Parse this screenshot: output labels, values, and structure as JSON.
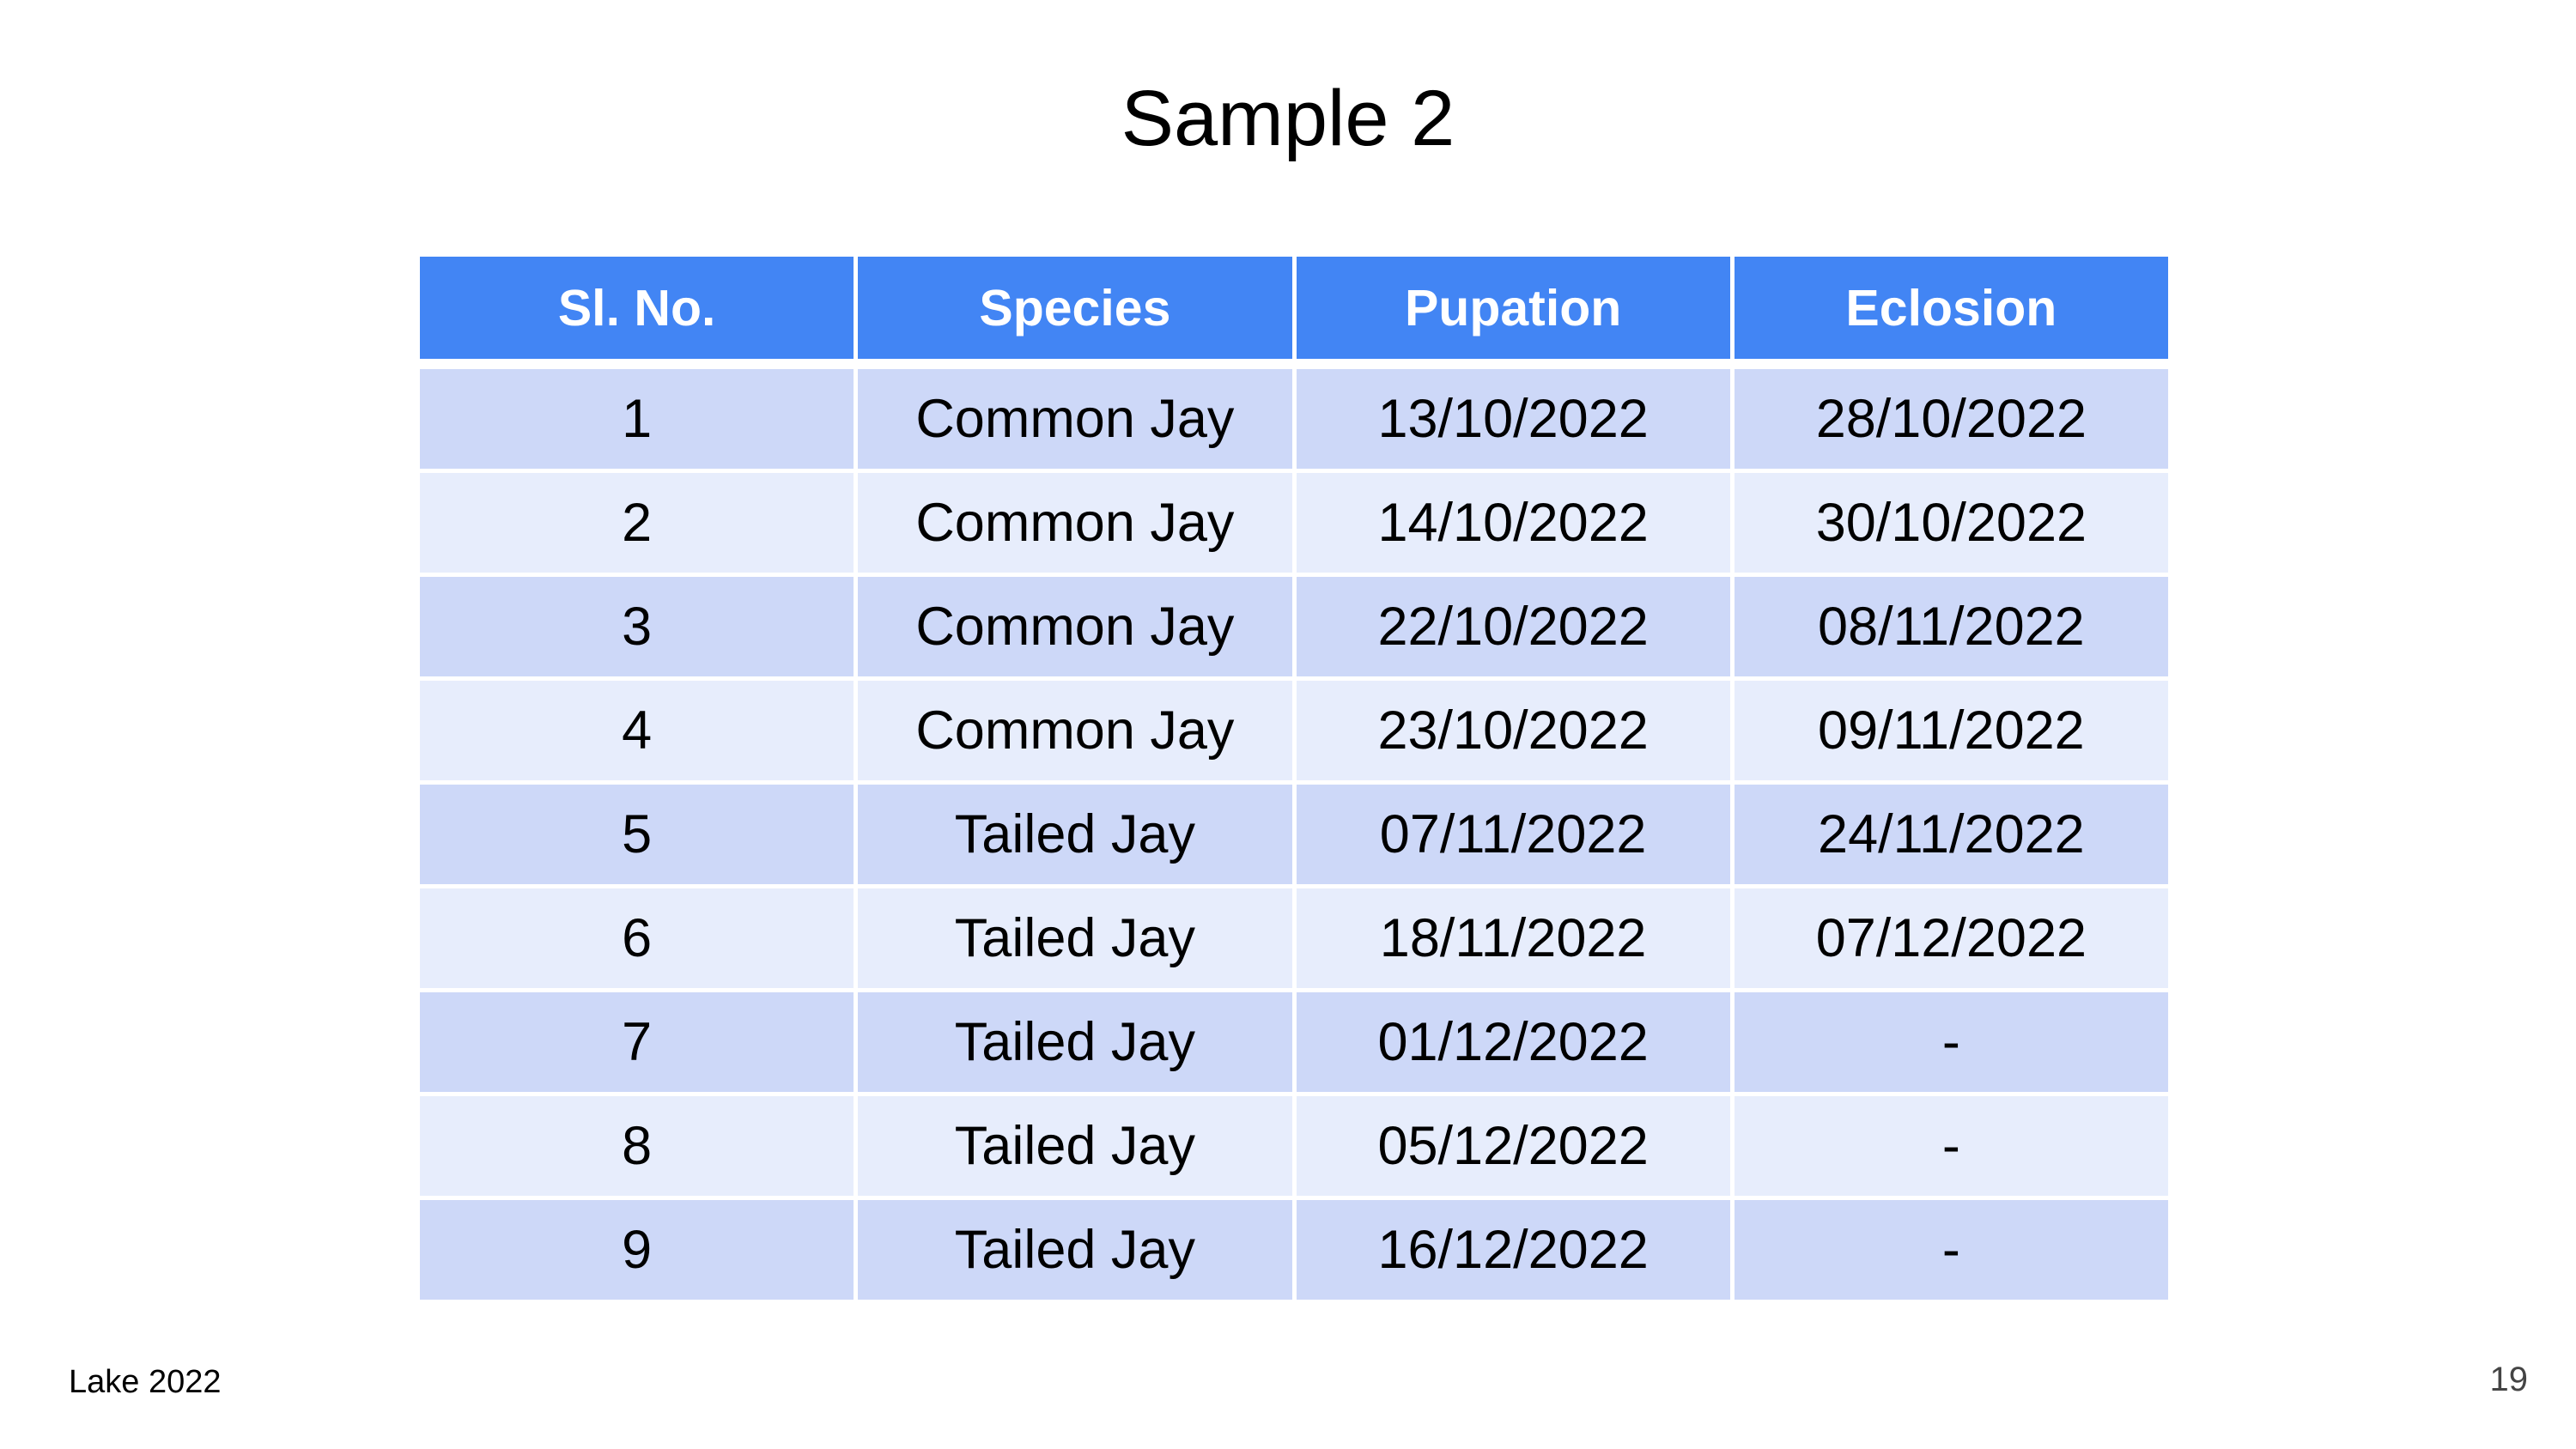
{
  "slide": {
    "title": "Sample 2",
    "footer_left": "Lake 2022",
    "page_number": "19"
  },
  "table": {
    "headers": [
      "Sl. No.",
      "Species",
      "Pupation",
      "Eclosion"
    ],
    "rows": [
      [
        "1",
        "Common Jay",
        "13/10/2022",
        "28/10/2022"
      ],
      [
        "2",
        "Common Jay",
        "14/10/2022",
        "30/10/2022"
      ],
      [
        "3",
        "Common Jay",
        "22/10/2022",
        "08/11/2022"
      ],
      [
        "4",
        "Common Jay",
        "23/10/2022",
        "09/11/2022"
      ],
      [
        "5",
        "Tailed Jay",
        "07/11/2022",
        "24/11/2022"
      ],
      [
        "6",
        "Tailed Jay",
        "18/11/2022",
        "07/12/2022"
      ],
      [
        "7",
        "Tailed Jay",
        "01/12/2022",
        "-"
      ],
      [
        "8",
        "Tailed Jay",
        "05/12/2022",
        "-"
      ],
      [
        "9",
        "Tailed Jay",
        "16/12/2022",
        "-"
      ]
    ]
  },
  "colors": {
    "header_bg": "#4285f4",
    "row_odd_bg": "#cdd8f8",
    "row_even_bg": "#e7edfc"
  }
}
